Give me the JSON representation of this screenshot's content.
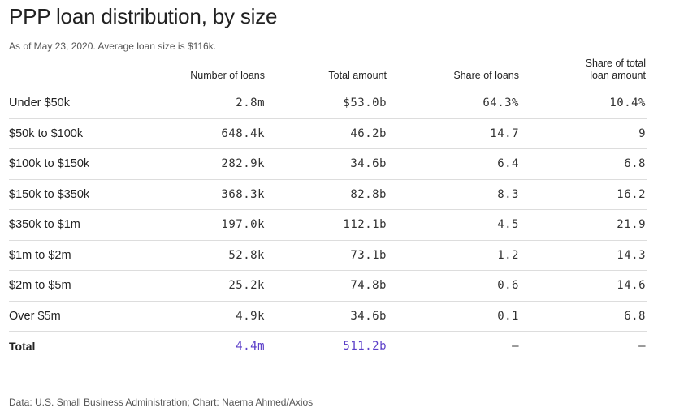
{
  "chart_data": {
    "type": "table",
    "title": "PPP loan distribution, by size",
    "subtitle": "As of May 23, 2020. Average loan size is $116k.",
    "source": "Data: U.S. Small Business Administration; Chart: Naema Ahmed/Axios",
    "columns": {
      "category": "",
      "number_of_loans": "Number of loans",
      "total_amount": "Total amount",
      "share_of_loans": "Share of loans",
      "share_of_total_line1": "Share of total",
      "share_of_total_line2": "loan amount"
    },
    "rows": [
      {
        "category": "Under $50k",
        "number_of_loans": "2.8m",
        "total_amount": "$53.0b",
        "share_of_loans": "64.3%",
        "share_of_total": "10.4%"
      },
      {
        "category": "$50k to $100k",
        "number_of_loans": "648.4k",
        "total_amount": "46.2b",
        "share_of_loans": "14.7",
        "share_of_total": "9"
      },
      {
        "category": "$100k to $150k",
        "number_of_loans": "282.9k",
        "total_amount": "34.6b",
        "share_of_loans": "6.4",
        "share_of_total": "6.8"
      },
      {
        "category": "$150k to $350k",
        "number_of_loans": "368.3k",
        "total_amount": "82.8b",
        "share_of_loans": "8.3",
        "share_of_total": "16.2"
      },
      {
        "category": "$350k to $1m",
        "number_of_loans": "197.0k",
        "total_amount": "112.1b",
        "share_of_loans": "4.5",
        "share_of_total": "21.9"
      },
      {
        "category": "$1m to $2m",
        "number_of_loans": "52.8k",
        "total_amount": "73.1b",
        "share_of_loans": "1.2",
        "share_of_total": "14.3"
      },
      {
        "category": "$2m to $5m",
        "number_of_loans": "25.2k",
        "total_amount": "74.8b",
        "share_of_loans": "0.6",
        "share_of_total": "14.6"
      },
      {
        "category": "Over $5m",
        "number_of_loans": "4.9k",
        "total_amount": "34.6b",
        "share_of_loans": "0.1",
        "share_of_total": "6.8"
      }
    ],
    "total": {
      "category": "Total",
      "number_of_loans": "4.4m",
      "total_amount": "511.2b",
      "share_of_loans": "–",
      "share_of_total": "–"
    },
    "colors": {
      "accent": "#5b3ec8",
      "text": "#222222",
      "muted": "#555555",
      "rule": "#dddddd"
    }
  }
}
